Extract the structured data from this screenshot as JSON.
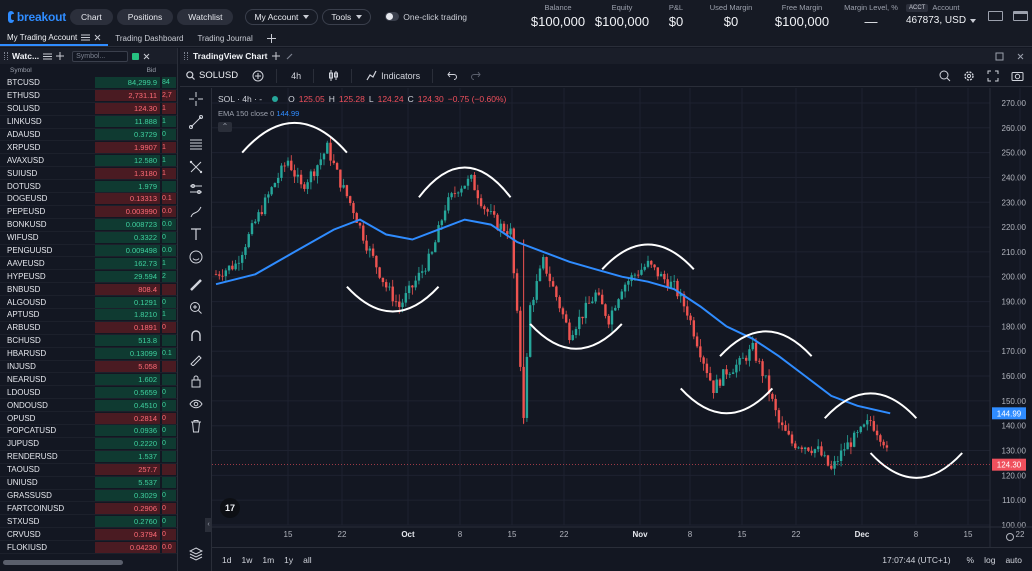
{
  "app": {
    "brand": "breakout",
    "nav": [
      {
        "label": "Chart"
      },
      {
        "label": "Positions"
      },
      {
        "label": "Watchlist"
      }
    ],
    "my_account_label": "My Account",
    "tools_label": "Tools",
    "one_click_label": "One-click trading",
    "stats": [
      {
        "label": "Balance",
        "value": "$100,000"
      },
      {
        "label": "Equity",
        "value": "$100,000"
      },
      {
        "label": "P&L",
        "value": "$0"
      },
      {
        "label": "Used Margin",
        "value": "$0"
      },
      {
        "label": "Free Margin",
        "value": "$100,000"
      },
      {
        "label": "Margin Level, %",
        "value": "—"
      }
    ],
    "account": {
      "badge": "ACCT",
      "label": "Account",
      "number": "467873, USD"
    }
  },
  "page_tabs": [
    {
      "label": "My Trading Account"
    },
    {
      "label": "Trading Dashboard"
    },
    {
      "label": "Trading Journal"
    }
  ],
  "watchlist": {
    "title": "Watc...",
    "search_placeholder": "Symbol...",
    "col_symbol": "Symbol",
    "col_bid": "Bid",
    "rows": [
      {
        "symbol": "BTCUSD",
        "bid": "84,299.9",
        "bid2": "84",
        "dir": "up"
      },
      {
        "symbol": "ETHUSD",
        "bid": "2,731.11",
        "bid2": "2,7",
        "dir": "dn"
      },
      {
        "symbol": "SOLUSD",
        "bid": "124.30",
        "bid2": "1",
        "dir": "dn"
      },
      {
        "symbol": "LINKUSD",
        "bid": "11.888",
        "bid2": "1",
        "dir": "up"
      },
      {
        "symbol": "ADAUSD",
        "bid": "0.3729",
        "bid2": "0",
        "dir": "up"
      },
      {
        "symbol": "XRPUSD",
        "bid": "1.9907",
        "bid2": "1",
        "dir": "dn"
      },
      {
        "symbol": "AVAXUSD",
        "bid": "12.580",
        "bid2": "1",
        "dir": "up"
      },
      {
        "symbol": "SUIUSD",
        "bid": "1.3180",
        "bid2": "1",
        "dir": "dn"
      },
      {
        "symbol": "DOTUSD",
        "bid": "1.979",
        "bid2": "",
        "dir": "up"
      },
      {
        "symbol": "DOGEUSD",
        "bid": "0.13313",
        "bid2": "0.1",
        "dir": "dn"
      },
      {
        "symbol": "PEPEUSD",
        "bid": "0.003990",
        "bid2": "0.0",
        "dir": "dn"
      },
      {
        "symbol": "BONKUSD",
        "bid": "0.008723",
        "bid2": "0.0",
        "dir": "up"
      },
      {
        "symbol": "WIFUSD",
        "bid": "0.3322",
        "bid2": "0",
        "dir": "up"
      },
      {
        "symbol": "PENGUUSD",
        "bid": "0.009498",
        "bid2": "0.0",
        "dir": "up"
      },
      {
        "symbol": "AAVEUSD",
        "bid": "162.73",
        "bid2": "1",
        "dir": "up"
      },
      {
        "symbol": "HYPEUSD",
        "bid": "29.594",
        "bid2": "2",
        "dir": "up"
      },
      {
        "symbol": "BNBUSD",
        "bid": "808.4",
        "bid2": "",
        "dir": "dn"
      },
      {
        "symbol": "ALGOUSD",
        "bid": "0.1291",
        "bid2": "0",
        "dir": "up"
      },
      {
        "symbol": "APTUSD",
        "bid": "1.8210",
        "bid2": "1",
        "dir": "up"
      },
      {
        "symbol": "ARBUSD",
        "bid": "0.1891",
        "bid2": "0",
        "dir": "dn"
      },
      {
        "symbol": "BCHUSD",
        "bid": "513.8",
        "bid2": "",
        "dir": "up"
      },
      {
        "symbol": "HBARUSD",
        "bid": "0.13099",
        "bid2": "0.1",
        "dir": "up"
      },
      {
        "symbol": "INJUSD",
        "bid": "5.058",
        "bid2": "",
        "dir": "dn"
      },
      {
        "symbol": "NEARUSD",
        "bid": "1.602",
        "bid2": "",
        "dir": "up"
      },
      {
        "symbol": "LDOUSD",
        "bid": "0.5659",
        "bid2": "0",
        "dir": "up"
      },
      {
        "symbol": "ONDOUSD",
        "bid": "0.4510",
        "bid2": "0",
        "dir": "up"
      },
      {
        "symbol": "OPUSD",
        "bid": "0.2814",
        "bid2": "0",
        "dir": "dn"
      },
      {
        "symbol": "POPCATUSD",
        "bid": "0.0936",
        "bid2": "0",
        "dir": "up"
      },
      {
        "symbol": "JUPUSD",
        "bid": "0.2220",
        "bid2": "0",
        "dir": "up"
      },
      {
        "symbol": "RENDERUSD",
        "bid": "1.537",
        "bid2": "",
        "dir": "up"
      },
      {
        "symbol": "TAOUSD",
        "bid": "257.7",
        "bid2": "",
        "dir": "dn"
      },
      {
        "symbol": "UNIUSD",
        "bid": "5.537",
        "bid2": "",
        "dir": "up"
      },
      {
        "symbol": "GRASSUSD",
        "bid": "0.3029",
        "bid2": "0",
        "dir": "up"
      },
      {
        "symbol": "FARTCOINUSD",
        "bid": "0.2906",
        "bid2": "0",
        "dir": "dn"
      },
      {
        "symbol": "STXUSD",
        "bid": "0.2760",
        "bid2": "0",
        "dir": "up"
      },
      {
        "symbol": "CRVUSD",
        "bid": "0.3794",
        "bid2": "0",
        "dir": "dn"
      },
      {
        "symbol": "FLOKIUSD",
        "bid": "0.04230",
        "bid2": "0.0",
        "dir": "dn"
      }
    ]
  },
  "chart_panel": {
    "title": "TradingView Chart",
    "symbol": "SOLUSD",
    "interval": "4h",
    "indicators_label": "Indicators",
    "legend": {
      "symbol": "SOL · 4h · -",
      "o_label": "O",
      "o": "125.05",
      "h_label": "H",
      "h": "125.28",
      "l_label": "L",
      "l": "124.24",
      "c_label": "C",
      "c": "124.30",
      "change": "−0.75 (−0.60%)",
      "ema_label": "EMA 150 close 0",
      "ema_value": "144.99"
    },
    "bottom": {
      "timeframes": [
        "1d",
        "1w",
        "1m",
        "1y",
        "all"
      ],
      "clock": "17:07:44 (UTC+1)",
      "percent": "%",
      "log": "log",
      "auto": "auto"
    },
    "tv_logo": "17"
  },
  "chart_data": {
    "type": "candlestick",
    "y_ticks": [
      270,
      260,
      250,
      240,
      230,
      220,
      210,
      200,
      190,
      180,
      170,
      160,
      150,
      140,
      130,
      120,
      110,
      100
    ],
    "y_tick_labels": [
      "270.00",
      "260.00",
      "250.00",
      "240.00",
      "230.00",
      "220.00",
      "210.00",
      "200.00",
      "190.00",
      "180.00",
      "170.00",
      "160.00",
      "150.00",
      "140.00",
      "130.00",
      "120.00",
      "110.00",
      "100.00"
    ],
    "x_ticks": [
      "15",
      "22",
      "Oct",
      "8",
      "15",
      "22",
      "Nov",
      "8",
      "15",
      "22",
      "Dec",
      "8",
      "15",
      "22"
    ],
    "ylim": [
      100,
      272
    ],
    "price_path": [
      [
        0,
        201
      ],
      [
        3,
        205
      ],
      [
        6,
        222
      ],
      [
        9,
        238
      ],
      [
        11,
        247
      ],
      [
        13,
        236
      ],
      [
        15,
        243
      ],
      [
        17,
        252
      ],
      [
        19,
        238
      ],
      [
        21,
        227
      ],
      [
        23,
        213
      ],
      [
        26,
        196
      ],
      [
        28,
        188
      ],
      [
        30,
        196
      ],
      [
        33,
        209
      ],
      [
        35,
        228
      ],
      [
        37,
        236
      ],
      [
        39,
        239
      ],
      [
        41,
        228
      ],
      [
        43,
        221
      ],
      [
        45,
        218
      ],
      [
        46,
        184
      ],
      [
        47,
        145
      ],
      [
        48,
        188
      ],
      [
        50,
        206
      ],
      [
        52,
        192
      ],
      [
        54,
        177
      ],
      [
        56,
        185
      ],
      [
        58,
        193
      ],
      [
        60,
        183
      ],
      [
        62,
        196
      ],
      [
        64,
        201
      ],
      [
        66,
        205
      ],
      [
        68,
        200
      ],
      [
        70,
        196
      ],
      [
        72,
        186
      ],
      [
        74,
        170
      ],
      [
        76,
        155
      ],
      [
        78,
        162
      ],
      [
        80,
        165
      ],
      [
        82,
        171
      ],
      [
        84,
        158
      ],
      [
        86,
        141
      ],
      [
        88,
        133
      ],
      [
        90,
        132
      ],
      [
        92,
        130
      ],
      [
        94,
        122
      ],
      [
        96,
        131
      ],
      [
        98,
        136
      ],
      [
        100,
        142
      ],
      [
        102,
        134
      ],
      [
        103,
        124.3
      ]
    ],
    "ema": [
      [
        0,
        197
      ],
      [
        6,
        201
      ],
      [
        12,
        210
      ],
      [
        18,
        219
      ],
      [
        22,
        223
      ],
      [
        26,
        217
      ],
      [
        30,
        215
      ],
      [
        34,
        219
      ],
      [
        38,
        223
      ],
      [
        42,
        221
      ],
      [
        46,
        214
      ],
      [
        50,
        210
      ],
      [
        54,
        206
      ],
      [
        58,
        203
      ],
      [
        62,
        200
      ],
      [
        66,
        198
      ],
      [
        70,
        195
      ],
      [
        74,
        188
      ],
      [
        78,
        180
      ],
      [
        82,
        175
      ],
      [
        86,
        168
      ],
      [
        90,
        160
      ],
      [
        94,
        152
      ],
      [
        98,
        148
      ],
      [
        103,
        145
      ]
    ],
    "ema_color": "#2f8cff",
    "up_color": "#26a69a",
    "down_color": "#ef5350",
    "last_price": "124.30",
    "last_price_color": "#f0505d",
    "ema_last": "144.99",
    "arcs": [
      {
        "type": "top",
        "x": 12,
        "y": 250,
        "w": 8,
        "h": 12
      },
      {
        "type": "bottom",
        "x": 27,
        "y": 196,
        "w": 7,
        "h": 10
      },
      {
        "type": "top",
        "x": 38,
        "y": 232,
        "w": 7,
        "h": 12
      },
      {
        "type": "bottom",
        "x": 55,
        "y": 181,
        "w": 7,
        "h": 10
      },
      {
        "type": "top",
        "x": 66,
        "y": 203,
        "w": 7,
        "h": 10
      },
      {
        "type": "bottom",
        "x": 78,
        "y": 155,
        "w": 7,
        "h": 10
      },
      {
        "type": "top",
        "x": 84,
        "y": 168,
        "w": 7,
        "h": 10
      },
      {
        "type": "top",
        "x": 100,
        "y": 143,
        "w": 7,
        "h": 10
      },
      {
        "type": "bottom",
        "x": 107,
        "y": 129,
        "w": 7,
        "h": 10
      }
    ]
  }
}
